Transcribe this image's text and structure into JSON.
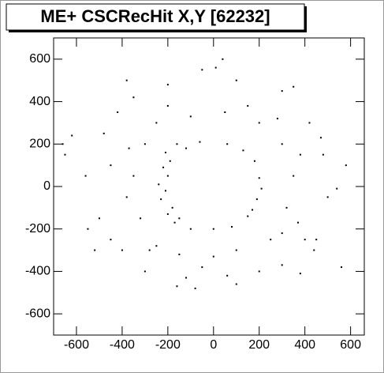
{
  "chart_data": {
    "type": "scatter",
    "title": "ME+ CSCRecHit X,Y [62232]",
    "color": "#000000",
    "xlim": [
      -700,
      660
    ],
    "ylim": [
      -700,
      700
    ],
    "xticks": [
      -600,
      -400,
      -200,
      0,
      200,
      400,
      600
    ],
    "yticks": [
      -600,
      -400,
      -200,
      0,
      200,
      400,
      600
    ],
    "x": [
      -200,
      -210,
      -190,
      -180,
      -150,
      -120,
      -60,
      0,
      80,
      150,
      190,
      200,
      180,
      130,
      60,
      -220,
      -230,
      -170,
      -100,
      -200,
      -210,
      170,
      210,
      -240,
      -160,
      -300,
      -350,
      -320,
      -250,
      -150,
      0,
      100,
      250,
      320,
      350,
      300,
      200,
      50,
      -100,
      -250,
      -380,
      -280,
      300,
      380,
      -50,
      150,
      -200,
      280,
      -370,
      370,
      -450,
      -500,
      -480,
      -400,
      -300,
      -120,
      60,
      200,
      380,
      450,
      500,
      480,
      420,
      300,
      100,
      -50,
      -200,
      -350,
      -420,
      -560,
      -550,
      560,
      540,
      440,
      40,
      10,
      -380,
      350,
      -650,
      -660,
      -620,
      580,
      -520,
      -160,
      -80,
      100,
      300,
      -450,
      400,
      470
    ],
    "y": [
      50,
      -20,
      120,
      -100,
      -150,
      180,
      210,
      -200,
      -190,
      -140,
      -60,
      40,
      120,
      170,
      200,
      90,
      -60,
      -170,
      -200,
      -130,
      160,
      -110,
      -10,
      10,
      200,
      200,
      50,
      -150,
      -280,
      -320,
      -330,
      -300,
      -250,
      -100,
      50,
      200,
      300,
      350,
      330,
      300,
      -50,
      -300,
      -220,
      150,
      -380,
      380,
      380,
      320,
      180,
      -170,
      100,
      -150,
      250,
      -300,
      -400,
      -430,
      -420,
      -400,
      -410,
      -250,
      -50,
      150,
      300,
      450,
      500,
      550,
      480,
      420,
      350,
      50,
      -200,
      -380,
      -10,
      -300,
      600,
      560,
      500,
      470,
      150,
      200,
      240,
      100,
      -300,
      -470,
      -480,
      -460,
      -370,
      -250,
      -250,
      230
    ]
  }
}
